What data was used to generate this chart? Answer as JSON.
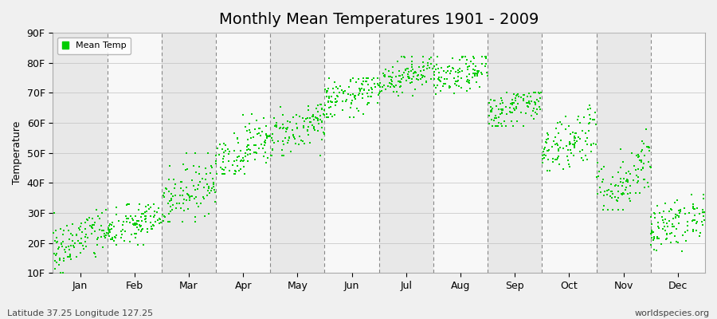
{
  "title": "Monthly Mean Temperatures 1901 - 2009",
  "ylabel": "Temperature",
  "xlabel": "",
  "background_color": "#f0f0f0",
  "plot_bg_color": "#f0f0f0",
  "dot_color": "#00cc00",
  "dot_size": 3,
  "ylim": [
    10,
    90
  ],
  "yticks": [
    10,
    20,
    30,
    40,
    50,
    60,
    70,
    80,
    90
  ],
  "ytick_labels": [
    "10F",
    "20F",
    "30F",
    "40F",
    "50F",
    "60F",
    "70F",
    "80F",
    "90F"
  ],
  "months": [
    "Jan",
    "Feb",
    "Mar",
    "Apr",
    "May",
    "Jun",
    "Jul",
    "Aug",
    "Sep",
    "Oct",
    "Nov",
    "Dec"
  ],
  "month_means": [
    21,
    26,
    37,
    51,
    58,
    69,
    76,
    76,
    65,
    54,
    41,
    27
  ],
  "month_stds": [
    4.5,
    3.5,
    5.0,
    4.5,
    4.0,
    3.5,
    3.0,
    3.0,
    3.5,
    5.0,
    5.5,
    4.0
  ],
  "month_mins": [
    10,
    18,
    27,
    43,
    49,
    62,
    69,
    69,
    59,
    44,
    31,
    17
  ],
  "month_maxs": [
    31,
    33,
    50,
    63,
    66,
    75,
    82,
    82,
    70,
    71,
    58,
    36
  ],
  "month_trend": [
    7,
    5,
    10,
    8,
    7,
    4,
    4,
    4,
    5,
    10,
    12,
    8
  ],
  "n_years": 109,
  "legend_label": "Mean Temp",
  "bottom_left": "Latitude 37.25 Longitude 127.25",
  "bottom_right": "worldspecies.org",
  "title_fontsize": 14,
  "label_fontsize": 9,
  "tick_fontsize": 9,
  "grid_color": "#c0c0c0",
  "vline_color": "#888888",
  "band_colors": [
    "#e8e8e8",
    "#f8f8f8"
  ]
}
